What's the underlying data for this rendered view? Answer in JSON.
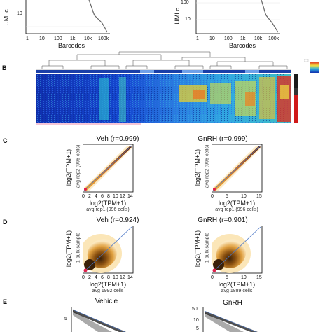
{
  "panelA": {
    "ylabel": "UMI c",
    "xlabel_left": "Barcodes",
    "xlabel_right": "Barcodes",
    "xticks": [
      "1",
      "10",
      "100",
      "1k",
      "10k",
      "100k"
    ],
    "yticks_left": [
      "10"
    ],
    "yticks_right": [
      "100",
      "10"
    ]
  },
  "panelB": {
    "letter": "B"
  },
  "panelC": {
    "letter": "C",
    "left_title": "Veh (r=0.999)",
    "right_title": "GnRH (r=0.999)",
    "ylabel": "log2(TPM+1)",
    "ysub": "avg rep2 (996 cells)",
    "xlabel": "log2(TPM+1)",
    "xsub": "avg rep1 (996 cells)",
    "left_ticks": [
      "0",
      "2",
      "4",
      "6",
      "8",
      "10",
      "12",
      "14"
    ],
    "right_ticks": [
      "0",
      "5",
      "10",
      "15"
    ]
  },
  "panelD": {
    "letter": "D",
    "left_title": "Veh (r=0.924)",
    "right_title": "GnRH (r=0.901)",
    "ylabel": "log2(TPM+1)",
    "ysub": "1 bulk sample",
    "xlabel": "log2(TPM+1)",
    "xsub_left": "avg 1992 cells",
    "xsub_right": "avg 1889 cells",
    "left_ticks": [
      "0",
      "2",
      "4",
      "6",
      "8",
      "10",
      "12",
      "14"
    ],
    "right_ticks": [
      "0",
      "5",
      "10",
      "15"
    ]
  },
  "panelE": {
    "letter": "E",
    "left_title": "Vehicle",
    "right_title": "GnRH",
    "left_yticks": [
      "5"
    ],
    "right_yticks": [
      "50",
      "10",
      "5"
    ]
  },
  "colors": {
    "scatter_dense": "#7a4a10",
    "scatter_light": "#f1c060",
    "diag_line": "#4c78c8",
    "red_points": "#e0204a"
  }
}
